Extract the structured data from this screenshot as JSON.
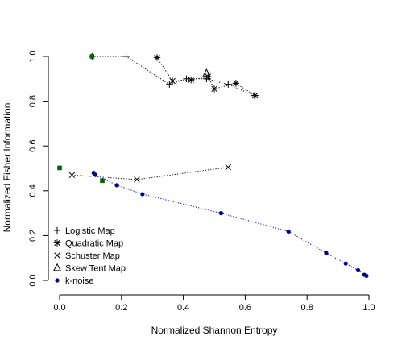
{
  "chart_data": {
    "type": "scatter",
    "xlabel": "Normalized Shannon Entropy",
    "ylabel": "Normalized Fisher Information",
    "xlim": [
      -0.03,
      1.0
    ],
    "ylim": [
      -0.02,
      1.02
    ],
    "x_ticks": [
      0.0,
      0.2,
      0.4,
      0.6,
      0.8,
      1.0
    ],
    "x_tick_labels": [
      "0.0",
      "0.2",
      "0.4",
      "0.6",
      "0.8",
      "1.0"
    ],
    "y_ticks": [
      0.0,
      0.2,
      0.4,
      0.6,
      0.8,
      1.0
    ],
    "y_tick_labels": [
      "0.0",
      "0.2",
      "0.4",
      "0.6",
      "0.8",
      "1.0"
    ],
    "legend_position": "bottom-left",
    "series": [
      {
        "name": "Logistic Map",
        "marker": "plus",
        "color": "#000000",
        "line": "dotted",
        "points": [
          [
            0.105,
            1.0
          ],
          [
            0.215,
            1.0
          ],
          [
            0.355,
            0.875
          ],
          [
            0.41,
            0.9
          ],
          [
            0.475,
            0.9
          ],
          [
            0.545,
            0.875
          ],
          [
            0.63,
            0.825
          ]
        ]
      },
      {
        "name": "Quadratic Map",
        "marker": "asterisk",
        "color": "#000000",
        "line": "dotted",
        "points": [
          [
            0.315,
            0.995
          ],
          [
            0.365,
            0.89
          ],
          [
            0.425,
            0.895
          ],
          [
            0.48,
            0.91
          ],
          [
            0.5,
            0.855
          ],
          [
            0.57,
            0.88
          ],
          [
            0.632,
            0.825
          ]
        ]
      },
      {
        "name": "Schuster Map",
        "marker": "cross",
        "color": "#000000",
        "line": "dotted",
        "points": [
          [
            0.04,
            0.47
          ],
          [
            0.25,
            0.45
          ],
          [
            0.545,
            0.505
          ]
        ]
      },
      {
        "name": "Skew Tent Map",
        "marker": "triangle",
        "color": "#000000",
        "line": "dotted",
        "points": [
          [
            0.475,
            0.925
          ]
        ]
      },
      {
        "name": "k-noise",
        "marker": "dot",
        "color": "#00008b",
        "line": "dotted",
        "line_color": "#0000cd",
        "points": [
          [
            0.11,
            0.48
          ],
          [
            0.115,
            0.472
          ],
          [
            0.185,
            0.425
          ],
          [
            0.268,
            0.385
          ],
          [
            0.522,
            0.3
          ],
          [
            0.74,
            0.218
          ],
          [
            0.862,
            0.122
          ],
          [
            0.925,
            0.075
          ],
          [
            0.965,
            0.045
          ],
          [
            0.985,
            0.025
          ],
          [
            0.992,
            0.02
          ]
        ]
      }
    ],
    "extra_points": {
      "marker": "square",
      "color": "#006400",
      "points": [
        [
          0.0,
          0.502
        ],
        [
          0.105,
          1.0
        ],
        [
          0.138,
          0.445
        ]
      ]
    },
    "legend": [
      {
        "label": "Logistic Map",
        "marker": "plus"
      },
      {
        "label": "Quadratic Map",
        "marker": "asterisk"
      },
      {
        "label": "Schuster Map",
        "marker": "cross"
      },
      {
        "label": "Skew Tent Map",
        "marker": "triangle"
      },
      {
        "label": "k-noise",
        "marker": "dot"
      }
    ]
  }
}
